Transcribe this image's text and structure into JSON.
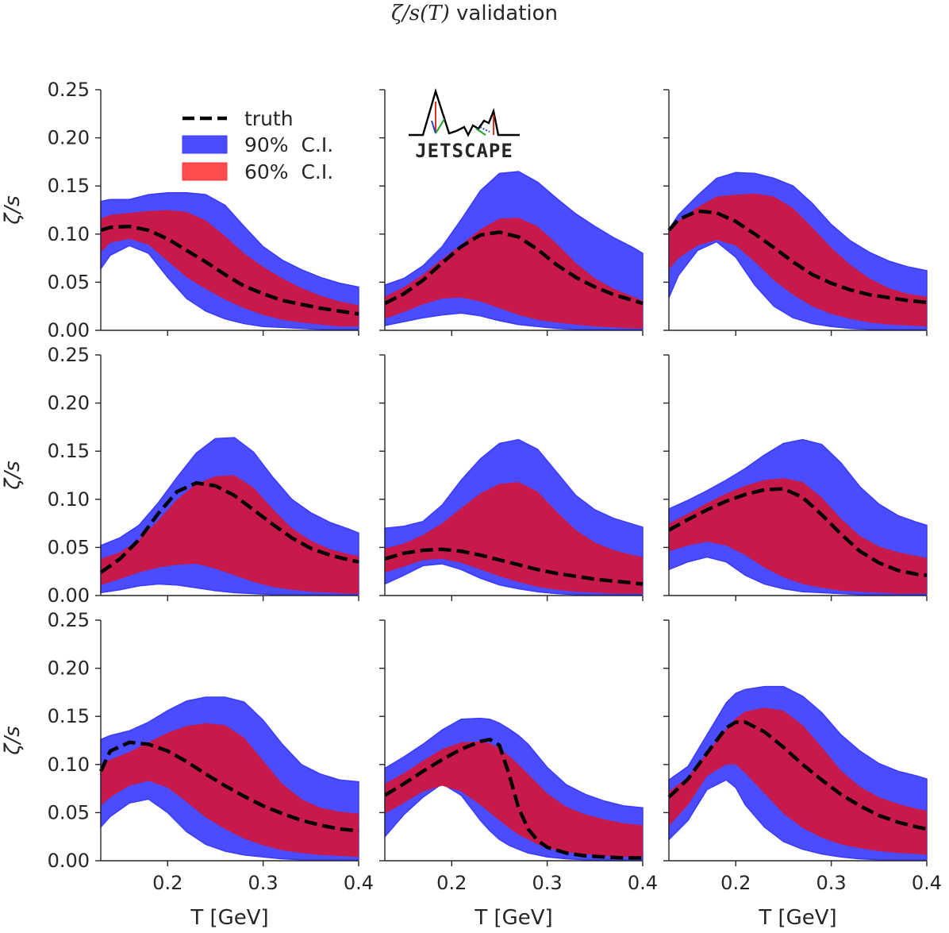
{
  "figure": {
    "title_symbol": "ζ/s(T)",
    "title_rest": " validation",
    "logo_text": "JETSCAPE"
  },
  "legend": {
    "entries": [
      {
        "label": "truth",
        "style": "dashed",
        "color": "#000000"
      },
      {
        "label": "90%  C.I.",
        "style": "fill",
        "color": "#4b4bff"
      },
      {
        "label": "60%  C.I.",
        "style": "fill",
        "color": "#ff4b4b"
      }
    ]
  },
  "colors": {
    "band90": "#4b4bff",
    "band60": "#c81a4a",
    "truth": "#000000",
    "axis": "#262626"
  },
  "chart_data": [
    {
      "type": "area",
      "panel": 1,
      "xlim": [
        0.13,
        0.4
      ],
      "ylim": [
        0,
        0.25
      ],
      "ylabel": "ζ/s",
      "xlabel": "",
      "x": [
        0.13,
        0.14,
        0.16,
        0.18,
        0.2,
        0.22,
        0.24,
        0.26,
        0.28,
        0.3,
        0.32,
        0.34,
        0.36,
        0.38,
        0.4
      ],
      "truth": [
        0.104,
        0.107,
        0.108,
        0.104,
        0.095,
        0.083,
        0.071,
        0.058,
        0.046,
        0.038,
        0.031,
        0.027,
        0.023,
        0.02,
        0.017
      ],
      "band90_upper": [
        0.134,
        0.136,
        0.136,
        0.141,
        0.143,
        0.143,
        0.141,
        0.13,
        0.108,
        0.087,
        0.073,
        0.063,
        0.055,
        0.049,
        0.045
      ],
      "band90_lower": [
        0.064,
        0.078,
        0.088,
        0.08,
        0.055,
        0.033,
        0.02,
        0.012,
        0.007,
        0.004,
        0.003,
        0.002,
        0.001,
        0.001,
        0.001
      ],
      "band60_upper": [
        0.116,
        0.12,
        0.122,
        0.124,
        0.125,
        0.123,
        0.114,
        0.098,
        0.08,
        0.066,
        0.054,
        0.044,
        0.036,
        0.03,
        0.026
      ],
      "band60_lower": [
        0.081,
        0.091,
        0.095,
        0.089,
        0.072,
        0.055,
        0.043,
        0.032,
        0.023,
        0.016,
        0.011,
        0.008,
        0.006,
        0.004,
        0.004
      ]
    },
    {
      "type": "area",
      "panel": 2,
      "xlim": [
        0.13,
        0.4
      ],
      "ylim": [
        0,
        0.25
      ],
      "ylabel": "",
      "xlabel": "",
      "x": [
        0.13,
        0.15,
        0.17,
        0.19,
        0.21,
        0.23,
        0.25,
        0.27,
        0.29,
        0.31,
        0.33,
        0.35,
        0.37,
        0.39,
        0.4
      ],
      "truth": [
        0.028,
        0.038,
        0.052,
        0.07,
        0.087,
        0.099,
        0.102,
        0.097,
        0.084,
        0.068,
        0.055,
        0.045,
        0.037,
        0.031,
        0.028
      ],
      "band90_upper": [
        0.047,
        0.054,
        0.067,
        0.087,
        0.115,
        0.145,
        0.163,
        0.165,
        0.154,
        0.137,
        0.121,
        0.108,
        0.096,
        0.086,
        0.08
      ],
      "band90_lower": [
        0.005,
        0.009,
        0.013,
        0.016,
        0.018,
        0.015,
        0.01,
        0.006,
        0.004,
        0.002,
        0.001,
        0.001,
        0.001,
        0.001,
        0.001
      ],
      "band60_upper": [
        0.035,
        0.045,
        0.058,
        0.074,
        0.089,
        0.105,
        0.116,
        0.117,
        0.108,
        0.09,
        0.07,
        0.054,
        0.043,
        0.035,
        0.031
      ],
      "band60_lower": [
        0.012,
        0.019,
        0.027,
        0.033,
        0.034,
        0.03,
        0.023,
        0.016,
        0.011,
        0.008,
        0.006,
        0.004,
        0.003,
        0.002,
        0.002
      ]
    },
    {
      "type": "area",
      "panel": 3,
      "xlim": [
        0.13,
        0.4
      ],
      "ylim": [
        0,
        0.25
      ],
      "ylabel": "",
      "xlabel": "",
      "x": [
        0.13,
        0.14,
        0.16,
        0.18,
        0.2,
        0.22,
        0.24,
        0.26,
        0.28,
        0.3,
        0.32,
        0.34,
        0.36,
        0.38,
        0.4
      ],
      "truth": [
        0.104,
        0.115,
        0.124,
        0.122,
        0.113,
        0.1,
        0.086,
        0.071,
        0.058,
        0.049,
        0.042,
        0.037,
        0.034,
        0.031,
        0.029
      ],
      "band90_upper": [
        0.105,
        0.12,
        0.14,
        0.158,
        0.164,
        0.163,
        0.158,
        0.15,
        0.132,
        0.11,
        0.093,
        0.081,
        0.072,
        0.066,
        0.062
      ],
      "band90_lower": [
        0.034,
        0.057,
        0.083,
        0.092,
        0.076,
        0.047,
        0.025,
        0.013,
        0.007,
        0.004,
        0.002,
        0.001,
        0.001,
        0.001,
        0.001
      ],
      "band60_upper": [
        0.104,
        0.114,
        0.128,
        0.139,
        0.141,
        0.142,
        0.139,
        0.127,
        0.107,
        0.086,
        0.068,
        0.054,
        0.044,
        0.038,
        0.035
      ],
      "band60_lower": [
        0.063,
        0.075,
        0.088,
        0.094,
        0.088,
        0.071,
        0.052,
        0.037,
        0.025,
        0.017,
        0.012,
        0.008,
        0.006,
        0.005,
        0.004
      ]
    },
    {
      "type": "area",
      "panel": 4,
      "xlim": [
        0.13,
        0.4
      ],
      "ylim": [
        0,
        0.25
      ],
      "ylabel": "ζ/s",
      "xlabel": "",
      "x": [
        0.13,
        0.15,
        0.17,
        0.19,
        0.21,
        0.23,
        0.25,
        0.27,
        0.29,
        0.31,
        0.33,
        0.35,
        0.37,
        0.39,
        0.4
      ],
      "truth": [
        0.024,
        0.038,
        0.058,
        0.085,
        0.108,
        0.117,
        0.114,
        0.104,
        0.089,
        0.074,
        0.06,
        0.049,
        0.042,
        0.037,
        0.035
      ],
      "band90_upper": [
        0.052,
        0.06,
        0.073,
        0.096,
        0.123,
        0.148,
        0.163,
        0.164,
        0.149,
        0.123,
        0.1,
        0.086,
        0.076,
        0.069,
        0.065
      ],
      "band90_lower": [
        0.003,
        0.006,
        0.01,
        0.012,
        0.011,
        0.008,
        0.005,
        0.003,
        0.002,
        0.001,
        0.001,
        0.001,
        0.001,
        0.001,
        0.001
      ],
      "band60_upper": [
        0.038,
        0.045,
        0.058,
        0.078,
        0.1,
        0.116,
        0.124,
        0.125,
        0.112,
        0.09,
        0.07,
        0.057,
        0.048,
        0.043,
        0.041
      ],
      "band60_lower": [
        0.011,
        0.017,
        0.024,
        0.029,
        0.032,
        0.033,
        0.028,
        0.021,
        0.014,
        0.009,
        0.006,
        0.004,
        0.003,
        0.002,
        0.002
      ]
    },
    {
      "type": "area",
      "panel": 5,
      "xlim": [
        0.13,
        0.4
      ],
      "ylim": [
        0,
        0.25
      ],
      "ylabel": "",
      "xlabel": "",
      "x": [
        0.13,
        0.15,
        0.17,
        0.19,
        0.21,
        0.23,
        0.25,
        0.27,
        0.29,
        0.31,
        0.33,
        0.35,
        0.37,
        0.39,
        0.4
      ],
      "truth": [
        0.038,
        0.044,
        0.047,
        0.048,
        0.046,
        0.042,
        0.037,
        0.032,
        0.027,
        0.023,
        0.02,
        0.017,
        0.015,
        0.013,
        0.012
      ],
      "band90_upper": [
        0.07,
        0.072,
        0.077,
        0.094,
        0.12,
        0.142,
        0.158,
        0.162,
        0.152,
        0.128,
        0.104,
        0.089,
        0.08,
        0.074,
        0.071
      ],
      "band90_lower": [
        0.012,
        0.021,
        0.031,
        0.033,
        0.027,
        0.018,
        0.011,
        0.007,
        0.004,
        0.002,
        0.001,
        0.001,
        0.001,
        0.001,
        0.001
      ],
      "band60_upper": [
        0.049,
        0.054,
        0.063,
        0.075,
        0.091,
        0.106,
        0.116,
        0.118,
        0.108,
        0.087,
        0.068,
        0.055,
        0.047,
        0.042,
        0.04
      ],
      "band60_lower": [
        0.024,
        0.03,
        0.037,
        0.038,
        0.034,
        0.027,
        0.02,
        0.014,
        0.009,
        0.006,
        0.004,
        0.003,
        0.002,
        0.002,
        0.002
      ]
    },
    {
      "type": "area",
      "panel": 6,
      "xlim": [
        0.13,
        0.4
      ],
      "ylim": [
        0,
        0.25
      ],
      "ylabel": "",
      "xlabel": "",
      "x": [
        0.13,
        0.15,
        0.17,
        0.19,
        0.21,
        0.23,
        0.25,
        0.27,
        0.29,
        0.31,
        0.33,
        0.35,
        0.37,
        0.39,
        0.4
      ],
      "truth": [
        0.068,
        0.079,
        0.089,
        0.098,
        0.105,
        0.11,
        0.111,
        0.102,
        0.084,
        0.064,
        0.046,
        0.034,
        0.026,
        0.022,
        0.021
      ],
      "band90_upper": [
        0.09,
        0.099,
        0.109,
        0.12,
        0.132,
        0.146,
        0.158,
        0.162,
        0.157,
        0.138,
        0.113,
        0.095,
        0.083,
        0.076,
        0.073
      ],
      "band90_lower": [
        0.027,
        0.035,
        0.04,
        0.035,
        0.021,
        0.012,
        0.007,
        0.004,
        0.003,
        0.002,
        0.001,
        0.001,
        0.001,
        0.001,
        0.001
      ],
      "band60_upper": [
        0.075,
        0.085,
        0.096,
        0.106,
        0.114,
        0.12,
        0.122,
        0.118,
        0.102,
        0.08,
        0.062,
        0.051,
        0.045,
        0.041,
        0.039
      ],
      "band60_lower": [
        0.046,
        0.052,
        0.056,
        0.052,
        0.042,
        0.029,
        0.019,
        0.012,
        0.008,
        0.005,
        0.004,
        0.003,
        0.002,
        0.002,
        0.002
      ]
    },
    {
      "type": "area",
      "panel": 7,
      "xlim": [
        0.13,
        0.4
      ],
      "ylim": [
        0,
        0.25
      ],
      "ylabel": "ζ/s",
      "xlabel": "T [GeV]",
      "x": [
        0.13,
        0.14,
        0.16,
        0.18,
        0.2,
        0.22,
        0.24,
        0.26,
        0.28,
        0.3,
        0.32,
        0.34,
        0.36,
        0.38,
        0.4
      ],
      "truth": [
        0.093,
        0.114,
        0.123,
        0.121,
        0.114,
        0.103,
        0.09,
        0.078,
        0.067,
        0.057,
        0.049,
        0.042,
        0.037,
        0.033,
        0.031
      ],
      "band90_upper": [
        0.126,
        0.13,
        0.135,
        0.144,
        0.156,
        0.166,
        0.17,
        0.17,
        0.165,
        0.146,
        0.121,
        0.1,
        0.09,
        0.084,
        0.082
      ],
      "band90_lower": [
        0.035,
        0.046,
        0.06,
        0.064,
        0.05,
        0.03,
        0.017,
        0.01,
        0.006,
        0.004,
        0.002,
        0.001,
        0.001,
        0.001,
        0.001
      ],
      "band60_upper": [
        0.1,
        0.105,
        0.113,
        0.123,
        0.133,
        0.14,
        0.143,
        0.141,
        0.128,
        0.104,
        0.08,
        0.064,
        0.055,
        0.051,
        0.049
      ],
      "band60_lower": [
        0.057,
        0.066,
        0.078,
        0.083,
        0.076,
        0.061,
        0.045,
        0.033,
        0.023,
        0.016,
        0.011,
        0.008,
        0.006,
        0.005,
        0.004
      ]
    },
    {
      "type": "area",
      "panel": 8,
      "xlim": [
        0.13,
        0.4
      ],
      "ylim": [
        0,
        0.25
      ],
      "ylabel": "",
      "xlabel": "T [GeV]",
      "x": [
        0.13,
        0.15,
        0.17,
        0.19,
        0.21,
        0.23,
        0.24,
        0.25,
        0.26,
        0.27,
        0.28,
        0.29,
        0.3,
        0.32,
        0.34,
        0.36,
        0.38,
        0.4
      ],
      "truth": [
        0.068,
        0.08,
        0.093,
        0.105,
        0.116,
        0.124,
        0.126,
        0.12,
        0.09,
        0.055,
        0.033,
        0.021,
        0.014,
        0.008,
        0.005,
        0.004,
        0.003,
        0.003
      ],
      "band90_upper": [
        0.096,
        0.108,
        0.121,
        0.136,
        0.147,
        0.148,
        0.147,
        0.143,
        0.137,
        0.13,
        0.121,
        0.109,
        0.097,
        0.079,
        0.069,
        0.062,
        0.057,
        0.055
      ],
      "band90_lower": [
        0.025,
        0.048,
        0.066,
        0.08,
        0.068,
        0.042,
        0.031,
        0.022,
        0.016,
        0.012,
        0.008,
        0.006,
        0.004,
        0.002,
        0.001,
        0.001,
        0.001,
        0.001
      ],
      "band60_upper": [
        0.08,
        0.091,
        0.104,
        0.116,
        0.123,
        0.124,
        0.122,
        0.117,
        0.109,
        0.1,
        0.09,
        0.08,
        0.07,
        0.056,
        0.048,
        0.043,
        0.039,
        0.037
      ],
      "band60_lower": [
        0.049,
        0.06,
        0.072,
        0.078,
        0.072,
        0.058,
        0.05,
        0.042,
        0.034,
        0.027,
        0.022,
        0.017,
        0.013,
        0.009,
        0.007,
        0.005,
        0.004,
        0.004
      ]
    },
    {
      "type": "area",
      "panel": 9,
      "xlim": [
        0.13,
        0.4
      ],
      "ylim": [
        0,
        0.25
      ],
      "ylabel": "",
      "xlabel": "T [GeV]",
      "x": [
        0.13,
        0.15,
        0.17,
        0.19,
        0.2,
        0.21,
        0.23,
        0.25,
        0.27,
        0.29,
        0.31,
        0.33,
        0.35,
        0.37,
        0.39,
        0.4
      ],
      "truth": [
        0.066,
        0.085,
        0.112,
        0.138,
        0.144,
        0.144,
        0.134,
        0.118,
        0.1,
        0.084,
        0.069,
        0.057,
        0.047,
        0.04,
        0.035,
        0.033
      ],
      "band90_upper": [
        0.084,
        0.098,
        0.131,
        0.164,
        0.174,
        0.178,
        0.181,
        0.181,
        0.171,
        0.154,
        0.131,
        0.114,
        0.101,
        0.093,
        0.088,
        0.085
      ],
      "band90_lower": [
        0.022,
        0.042,
        0.074,
        0.084,
        0.076,
        0.058,
        0.035,
        0.02,
        0.012,
        0.007,
        0.004,
        0.002,
        0.001,
        0.001,
        0.001,
        0.001
      ],
      "band60_upper": [
        0.072,
        0.087,
        0.112,
        0.137,
        0.148,
        0.155,
        0.159,
        0.156,
        0.141,
        0.118,
        0.094,
        0.077,
        0.066,
        0.059,
        0.054,
        0.052
      ],
      "band60_lower": [
        0.036,
        0.058,
        0.088,
        0.1,
        0.1,
        0.091,
        0.07,
        0.049,
        0.034,
        0.024,
        0.017,
        0.013,
        0.01,
        0.008,
        0.007,
        0.006
      ]
    }
  ]
}
